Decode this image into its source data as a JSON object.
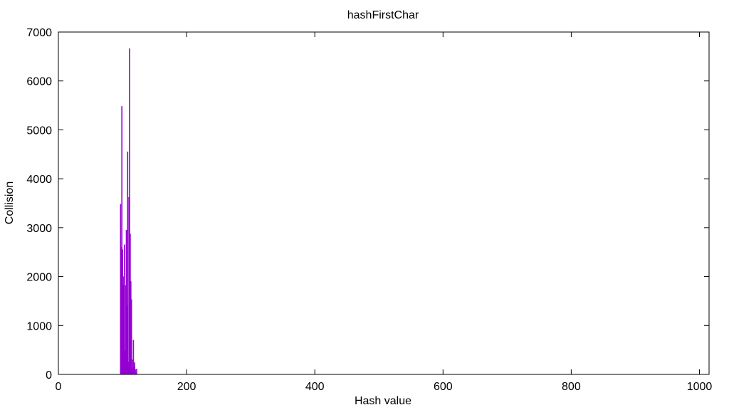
{
  "chart_data": {
    "type": "bar",
    "title": "hashFirstChar",
    "xlabel": "Hash value",
    "ylabel": "Collision",
    "xlim": [
      0,
      1015
    ],
    "ylim": [
      0,
      7000
    ],
    "xticks": [
      0,
      200,
      400,
      600,
      800,
      1000
    ],
    "yticks": [
      0,
      1000,
      2000,
      3000,
      4000,
      5000,
      6000,
      7000
    ],
    "grid": false,
    "legend": "none",
    "bar_color": "#9400d3",
    "x": [
      97,
      98,
      99,
      100,
      101,
      102,
      103,
      104,
      105,
      106,
      107,
      108,
      109,
      110,
      111,
      112,
      113,
      114,
      115,
      116,
      117,
      118,
      119,
      120,
      121,
      122
    ],
    "values": [
      3480,
      2600,
      5480,
      2550,
      1820,
      2000,
      2650,
      480,
      1820,
      2950,
      1400,
      4550,
      250,
      3620,
      6660,
      2870,
      1900,
      1530,
      120,
      300,
      700,
      150,
      240,
      100,
      30,
      110
    ]
  }
}
